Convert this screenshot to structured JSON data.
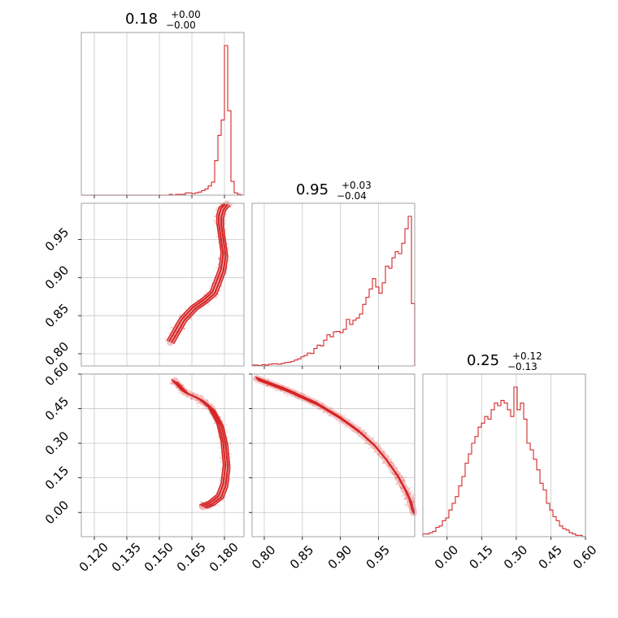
{
  "chart_data": {
    "type": "corner",
    "color": "#d62728",
    "grid": true,
    "panel_titles": [
      {
        "value": "0.18",
        "plus": "+0.00",
        "minus": "−0.00"
      },
      {
        "value": "0.95",
        "plus": "+0.03",
        "minus": "−0.04"
      },
      {
        "value": "0.25",
        "plus": "+0.12",
        "minus": "−0.13"
      }
    ],
    "ranges": [
      [
        0.114,
        0.189
      ],
      [
        0.784,
        0.9975
      ],
      [
        -0.105,
        0.6
      ]
    ],
    "ticks": [
      {
        "values": [
          0.12,
          0.135,
          0.15,
          0.165,
          0.18
        ],
        "labels": [
          "0.120",
          "0.135",
          "0.150",
          "0.165",
          "0.180"
        ]
      },
      {
        "values": [
          0.8,
          0.85,
          0.9,
          0.95
        ],
        "labels": [
          "0.80",
          "0.85",
          "0.90",
          "0.95"
        ]
      },
      {
        "values": [
          0.0,
          0.15,
          0.3,
          0.45,
          0.6
        ],
        "labels": [
          "0.00",
          "0.15",
          "0.30",
          "0.45",
          "0.60"
        ]
      }
    ],
    "histograms": [
      {
        "param": 0,
        "edges_start": 0.114,
        "bin_width": 0.0015,
        "counts": [
          0,
          0,
          0,
          0,
          0,
          0,
          0,
          0,
          0,
          0,
          0,
          0,
          0,
          0,
          0,
          0,
          0,
          0,
          0,
          0,
          0,
          0,
          0,
          0,
          0,
          0,
          0,
          1,
          0,
          1,
          1,
          1,
          3,
          3,
          2,
          3,
          4,
          6,
          8,
          12,
          17,
          45,
          78,
          98,
          195,
          110,
          18,
          3,
          1,
          0
        ]
      },
      {
        "param": 1,
        "edges_start": 0.784,
        "bin_width": 0.00427,
        "counts": [
          2,
          2,
          1,
          3,
          2,
          4,
          5,
          5,
          4,
          6,
          8,
          9,
          11,
          14,
          17,
          22,
          25,
          31,
          30,
          42,
          50,
          48,
          62,
          75,
          70,
          82,
          83,
          80,
          88,
          112,
          100,
          110,
          115,
          125,
          148,
          165,
          185,
          210,
          190,
          175,
          200,
          240,
          235,
          260,
          275,
          270,
          295,
          330,
          360,
          150
        ]
      },
      {
        "param": 2,
        "edges_start": -0.105,
        "bin_width": 0.0141,
        "counts": [
          2,
          2,
          3,
          4,
          7,
          8,
          12,
          14,
          20,
          25,
          30,
          38,
          45,
          55,
          62,
          70,
          75,
          82,
          85,
          90,
          88,
          95,
          100,
          98,
          102,
          100,
          95,
          90,
          112,
          95,
          100,
          88,
          70,
          65,
          58,
          50,
          40,
          35,
          25,
          20,
          15,
          12,
          8,
          6,
          5,
          3,
          2,
          1,
          1,
          0
        ]
      }
    ],
    "curves": {
      "x0_vs_x1": [
        [
          0.181,
          0.997
        ],
        [
          0.179,
          0.99
        ],
        [
          0.178,
          0.98
        ],
        [
          0.178,
          0.97
        ],
        [
          0.179,
          0.95
        ],
        [
          0.18,
          0.93
        ],
        [
          0.179,
          0.91
        ],
        [
          0.177,
          0.895
        ],
        [
          0.175,
          0.88
        ],
        [
          0.171,
          0.87
        ],
        [
          0.166,
          0.86
        ],
        [
          0.161,
          0.845
        ],
        [
          0.158,
          0.83
        ],
        [
          0.155,
          0.815
        ]
      ],
      "x0_vs_x2": [
        [
          0.157,
          0.57
        ],
        [
          0.162,
          0.52
        ],
        [
          0.169,
          0.49
        ],
        [
          0.174,
          0.45
        ],
        [
          0.178,
          0.38
        ],
        [
          0.18,
          0.3
        ],
        [
          0.181,
          0.2
        ],
        [
          0.18,
          0.12
        ],
        [
          0.178,
          0.07
        ],
        [
          0.174,
          0.04
        ],
        [
          0.17,
          0.025
        ]
      ],
      "x1_vs_x2": [
        [
          0.79,
          0.58
        ],
        [
          0.83,
          0.53
        ],
        [
          0.87,
          0.47
        ],
        [
          0.9,
          0.41
        ],
        [
          0.925,
          0.35
        ],
        [
          0.945,
          0.29
        ],
        [
          0.96,
          0.23
        ],
        [
          0.975,
          0.16
        ],
        [
          0.985,
          0.1
        ],
        [
          0.992,
          0.05
        ],
        [
          0.996,
          0.0
        ]
      ]
    }
  }
}
